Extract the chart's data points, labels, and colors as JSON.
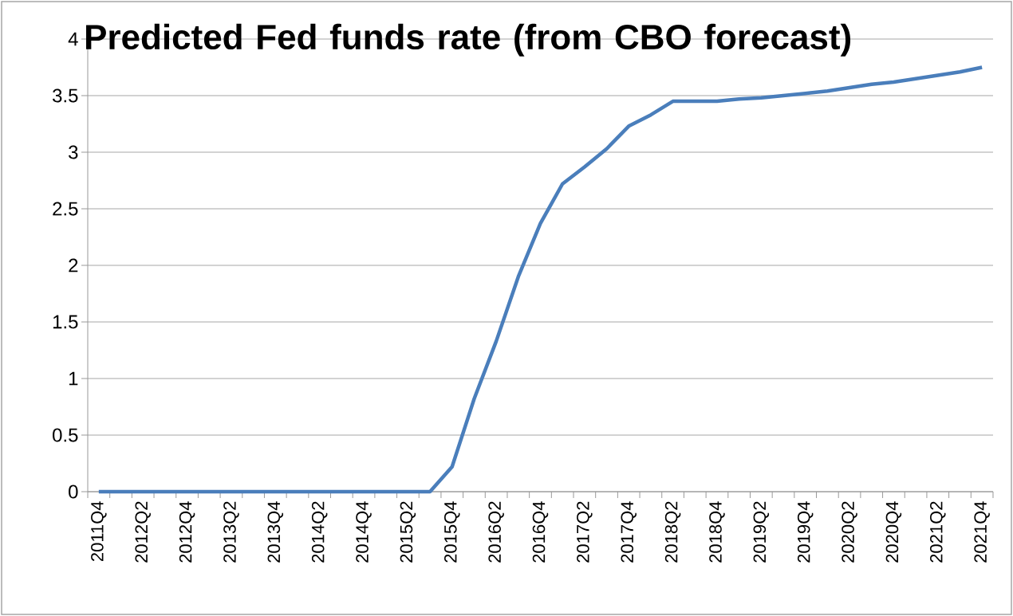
{
  "chart_data": {
    "type": "line",
    "title": "Predicted Fed funds rate (from CBO forecast)",
    "categories": [
      "2011Q4",
      null,
      "2012Q2",
      null,
      "2012Q4",
      null,
      "2013Q2",
      null,
      "2013Q4",
      null,
      "2014Q2",
      null,
      "2014Q4",
      null,
      "2015Q2",
      null,
      "2015Q4",
      null,
      "2016Q2",
      null,
      "2016Q4",
      null,
      "2017Q2",
      null,
      "2017Q4",
      null,
      "2018Q2",
      null,
      "2018Q4",
      null,
      "2019Q2",
      null,
      "2019Q4",
      null,
      "2020Q2",
      null,
      "2020Q4",
      null,
      "2021Q2",
      null,
      "2021Q4"
    ],
    "values": [
      0,
      0,
      0,
      0,
      0,
      0,
      0,
      0,
      0,
      0,
      0,
      0,
      0,
      0,
      0,
      0,
      0.22,
      0.82,
      1.33,
      1.9,
      2.37,
      2.72,
      2.87,
      3.03,
      3.23,
      3.33,
      3.45,
      3.45,
      3.45,
      3.47,
      3.48,
      3.5,
      3.52,
      3.54,
      3.57,
      3.6,
      3.62,
      3.65,
      3.68,
      3.71,
      3.75
    ],
    "color": "#4a7ebb",
    "ylim": [
      0,
      4
    ],
    "yticks": [
      0,
      0.5,
      1,
      1.5,
      2,
      2.5,
      3,
      3.5,
      4
    ],
    "grid": "y"
  }
}
